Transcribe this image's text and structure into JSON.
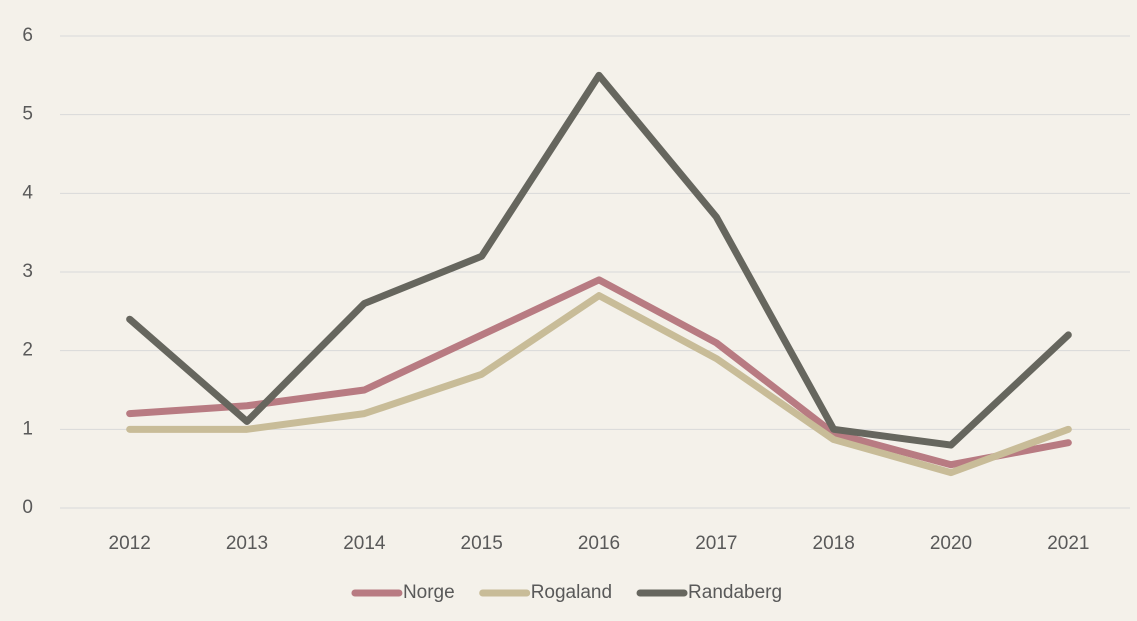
{
  "chart_data": {
    "type": "line",
    "categories": [
      "2012",
      "2013",
      "2014",
      "2015",
      "2016",
      "2017",
      "2018",
      "2020",
      "2021"
    ],
    "series": [
      {
        "name": "Norge",
        "color": "#b87b82",
        "values": [
          1.2,
          1.3,
          1.5,
          2.2,
          2.9,
          2.1,
          0.95,
          0.55,
          0.83
        ]
      },
      {
        "name": "Rogaland",
        "color": "#c8bc98",
        "values": [
          1.0,
          1.0,
          1.2,
          1.7,
          2.7,
          1.9,
          0.87,
          0.45,
          1.0
        ]
      },
      {
        "name": "Randaberg",
        "color": "#66665e",
        "values": [
          2.4,
          1.1,
          2.6,
          3.2,
          5.5,
          3.7,
          1.0,
          0.8,
          2.2
        ]
      }
    ],
    "ylim": [
      0,
      6
    ],
    "yticks": [
      0,
      1,
      2,
      3,
      4,
      5,
      6
    ],
    "grid": true,
    "legend": "bottom"
  }
}
